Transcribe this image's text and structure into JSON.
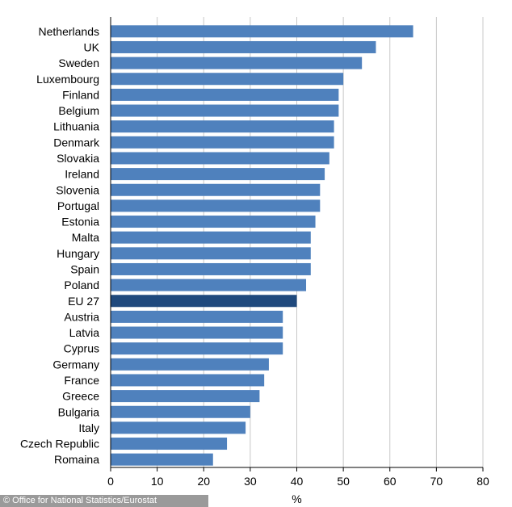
{
  "chart_data": {
    "type": "bar",
    "orientation": "horizontal",
    "categories": [
      "Netherlands",
      "UK",
      "Sweden",
      "Luxembourg",
      "Finland",
      "Belgium",
      "Lithuania",
      "Denmark",
      "Slovakia",
      "Ireland",
      "Slovenia",
      "Portugal",
      "Estonia",
      "Malta",
      "Hungary",
      "Spain",
      "Poland",
      "EU 27",
      "Austria",
      "Latvia",
      "Cyprus",
      "Germany",
      "France",
      "Greece",
      "Bulgaria",
      "Italy",
      "Czech Republic",
      "Romaina"
    ],
    "values": [
      65,
      57,
      54,
      50,
      49,
      49,
      48,
      48,
      47,
      46,
      45,
      45,
      44,
      43,
      43,
      43,
      42,
      40,
      37,
      37,
      37,
      34,
      33,
      32,
      30,
      29,
      25,
      22
    ],
    "highlight": "EU 27",
    "xlabel": "%",
    "ylabel": "",
    "title": "",
    "xlim": [
      0,
      80
    ],
    "xticks": [
      "0",
      "10",
      "20",
      "30",
      "40",
      "50",
      "60",
      "70",
      "80"
    ],
    "grid": "vertical",
    "colors": {
      "bar": "#4f81bd",
      "highlight": "#1f497d",
      "grid": "#c8c8c8",
      "axis": "#000000"
    }
  },
  "source": "© Office for National Statistics/Eurostat"
}
